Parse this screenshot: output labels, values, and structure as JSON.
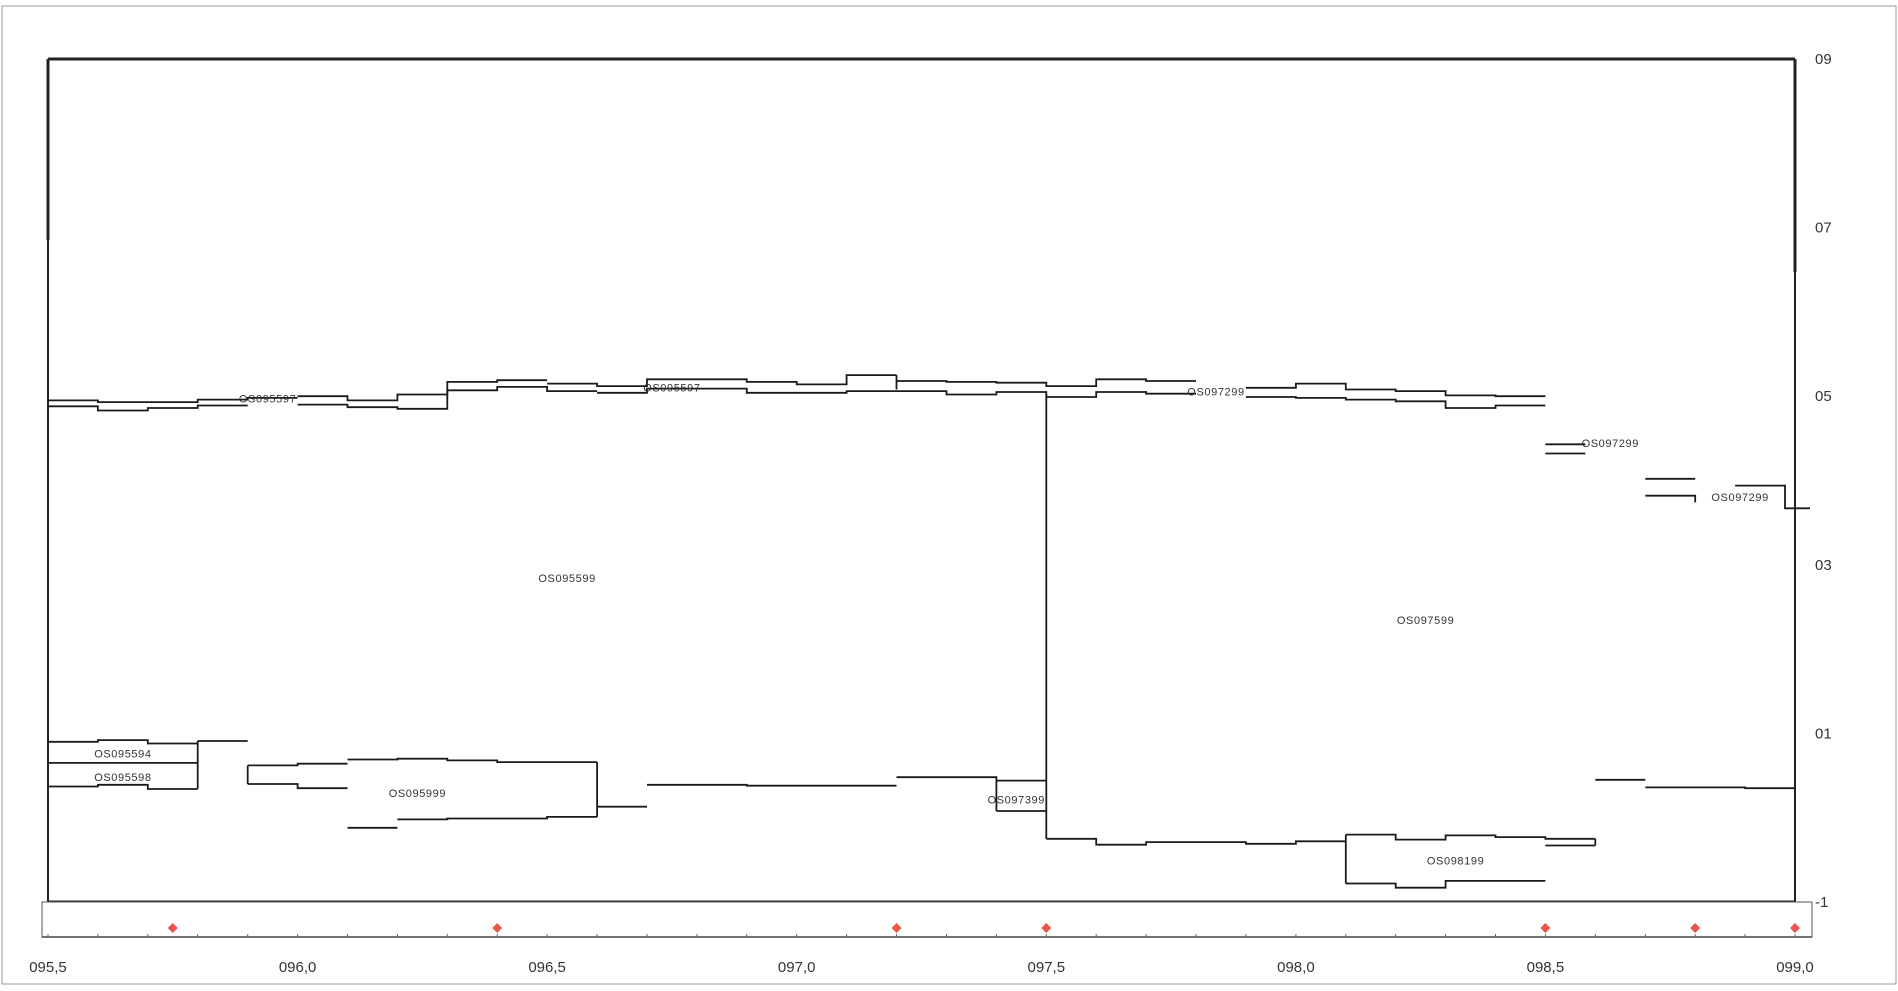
{
  "chart_data": {
    "type": "line",
    "title": "",
    "xlabel": "",
    "ylabel": "",
    "xlim": [
      95.5,
      99.0
    ],
    "ylim": [
      -1,
      9
    ],
    "x_ticks": [
      {
        "v": 95.5,
        "label": "095,5"
      },
      {
        "v": 96.0,
        "label": "096,0"
      },
      {
        "v": 96.5,
        "label": "096,5"
      },
      {
        "v": 97.0,
        "label": "097,0"
      },
      {
        "v": 97.5,
        "label": "097,5"
      },
      {
        "v": 98.0,
        "label": "098,0"
      },
      {
        "v": 98.5,
        "label": "098,5"
      },
      {
        "v": 99.0,
        "label": "099,0"
      }
    ],
    "y_ticks": [
      {
        "v": 9,
        "label": "09"
      },
      {
        "v": 7,
        "label": "07"
      },
      {
        "v": 5,
        "label": "05"
      },
      {
        "v": 3,
        "label": "03"
      },
      {
        "v": 1,
        "label": "01"
      },
      {
        "v": -1,
        "label": "-1"
      }
    ],
    "grid": false,
    "legend": "none",
    "colors": {
      "line": "#1a1a1a",
      "marker": "#e8574a",
      "text": "#333333",
      "axis": "#222222"
    },
    "segment_labels": [
      {
        "text": "OS095597",
        "x": 95.94,
        "y": 4.96
      },
      {
        "text": "OS095597",
        "x": 96.75,
        "y": 5.09
      },
      {
        "text": "OS097299",
        "x": 97.84,
        "y": 5.04
      },
      {
        "text": "OS097299",
        "x": 98.63,
        "y": 4.43
      },
      {
        "text": "OS097299",
        "x": 98.89,
        "y": 3.79
      },
      {
        "text": "OS095599",
        "x": 96.54,
        "y": 2.83
      },
      {
        "text": "OS097599",
        "x": 98.26,
        "y": 2.33
      },
      {
        "text": "OS095594",
        "x": 95.65,
        "y": 0.75
      },
      {
        "text": "OS095598",
        "x": 95.65,
        "y": 0.47
      },
      {
        "text": "OS095999",
        "x": 96.24,
        "y": 0.28
      },
      {
        "text": "OS097399",
        "x": 97.44,
        "y": 0.2
      },
      {
        "text": "OS098199",
        "x": 98.32,
        "y": -0.52
      }
    ],
    "markers": [
      95.75,
      96.4,
      97.2,
      97.5,
      98.5,
      98.8,
      99.0
    ],
    "upper_band": [
      {
        "x": [
          95.5,
          95.6,
          95.6,
          95.8,
          95.8,
          95.9,
          95.9,
          96.0
        ],
        "y": [
          4.95,
          4.95,
          4.93,
          4.93,
          4.96,
          4.96,
          4.98,
          4.98
        ]
      },
      {
        "x": [
          96.0,
          96.1,
          96.1,
          96.2,
          96.2,
          96.3,
          96.3,
          96.4,
          96.4,
          96.5
        ],
        "y": [
          5.0,
          5.0,
          4.95,
          4.95,
          5.02,
          5.02,
          5.17,
          5.17,
          5.19,
          5.19
        ]
      },
      {
        "x": [
          96.5,
          96.6,
          96.6,
          96.7,
          96.7,
          96.9,
          96.9,
          97.0,
          97.0,
          97.1,
          97.1,
          97.2
        ],
        "y": [
          5.15,
          5.15,
          5.12,
          5.12,
          5.2,
          5.2,
          5.17,
          5.17,
          5.14,
          5.14,
          5.25,
          5.25
        ]
      },
      {
        "x": [
          97.2,
          97.3,
          97.3,
          97.4,
          97.4,
          97.5,
          97.5,
          97.6,
          97.6,
          97.7,
          97.7,
          97.8
        ],
        "y": [
          5.18,
          5.18,
          5.17,
          5.17,
          5.16,
          5.16,
          5.12,
          5.12,
          5.2,
          5.2,
          5.18,
          5.18
        ]
      },
      {
        "x": [
          97.9,
          98.0,
          98.0,
          98.1,
          98.1,
          98.2,
          98.2,
          98.3,
          98.3,
          98.4,
          98.4,
          98.5
        ],
        "y": [
          5.1,
          5.1,
          5.15,
          5.15,
          5.08,
          5.08,
          5.06,
          5.06,
          5.01,
          5.01,
          5.0,
          5.0
        ]
      },
      {
        "x": [
          95.5,
          95.6,
          95.6,
          95.7,
          95.7,
          95.8,
          95.8,
          95.9
        ],
        "y": [
          4.88,
          4.88,
          4.83,
          4.83,
          4.86,
          4.86,
          4.89,
          4.89
        ]
      },
      {
        "x": [
          96.0,
          96.1,
          96.1,
          96.2,
          96.2,
          96.3,
          96.3,
          96.4,
          96.4,
          96.5,
          96.5,
          96.6
        ],
        "y": [
          4.9,
          4.9,
          4.87,
          4.87,
          4.85,
          4.85,
          5.07,
          5.07,
          5.11,
          5.11,
          5.06,
          5.06
        ]
      },
      {
        "x": [
          96.6,
          96.7,
          96.7,
          96.9,
          96.9,
          97.1,
          97.1,
          97.3,
          97.3,
          97.4,
          97.4,
          97.5,
          97.5,
          97.6,
          97.6,
          97.7,
          97.7,
          97.8
        ],
        "y": [
          5.04,
          5.04,
          5.09,
          5.09,
          5.04,
          5.04,
          5.06,
          5.06,
          5.02,
          5.02,
          5.05,
          5.05,
          4.99,
          4.99,
          5.05,
          5.05,
          5.03,
          5.03
        ]
      },
      {
        "x": [
          97.9,
          98.0,
          98.0,
          98.1,
          98.1,
          98.2,
          98.2,
          98.3,
          98.3,
          98.4,
          98.4,
          98.5
        ],
        "y": [
          4.99,
          4.99,
          4.98,
          4.98,
          4.96,
          4.96,
          4.94,
          4.94,
          4.86,
          4.86,
          4.89,
          4.89
        ]
      },
      {
        "x": [
          98.5,
          98.58
        ],
        "y": [
          4.43,
          4.43
        ]
      },
      {
        "x": [
          98.5,
          98.58
        ],
        "y": [
          4.32,
          4.32
        ]
      },
      {
        "x": [
          98.7,
          98.8
        ],
        "y": [
          4.02,
          4.02
        ]
      },
      {
        "x": [
          98.7,
          98.8,
          98.8
        ],
        "y": [
          3.82,
          3.82,
          3.74
        ]
      },
      {
        "x": [
          98.88,
          98.98,
          98.98,
          99.03
        ],
        "y": [
          3.94,
          3.94,
          3.67,
          3.67
        ]
      }
    ],
    "lower_band": [
      {
        "x": [
          95.5,
          95.6,
          95.6,
          95.7,
          95.7,
          95.8
        ],
        "y": [
          0.9,
          0.9,
          0.92,
          0.92,
          0.88,
          0.88
        ]
      },
      {
        "x": [
          95.5,
          95.8
        ],
        "y": [
          0.65,
          0.65
        ]
      },
      {
        "x": [
          95.5,
          95.6,
          95.6,
          95.7,
          95.7,
          95.8
        ],
        "y": [
          0.37,
          0.37,
          0.39,
          0.39,
          0.34,
          0.34
        ]
      },
      {
        "x": [
          95.8,
          95.9
        ],
        "y": [
          0.91,
          0.91
        ]
      },
      {
        "x": [
          95.9,
          96.0,
          96.0,
          96.1
        ],
        "y": [
          0.62,
          0.62,
          0.64,
          0.64
        ]
      },
      {
        "x": [
          95.9,
          96.0,
          96.0,
          96.1
        ],
        "y": [
          0.4,
          0.4,
          0.35,
          0.35
        ]
      },
      {
        "x": [
          96.1,
          96.2,
          96.2,
          96.3,
          96.3,
          96.4,
          96.4,
          96.6
        ],
        "y": [
          0.69,
          0.69,
          0.7,
          0.7,
          0.68,
          0.68,
          0.66,
          0.66
        ]
      },
      {
        "x": [
          96.1,
          96.2
        ],
        "y": [
          -0.12,
          -0.12
        ]
      },
      {
        "x": [
          96.2,
          96.3,
          96.3,
          96.5,
          96.5,
          96.6
        ],
        "y": [
          -0.02,
          -0.02,
          -0.01,
          -0.01,
          0.01,
          0.01
        ]
      },
      {
        "x": [
          96.6,
          96.7
        ],
        "y": [
          0.13,
          0.13
        ]
      },
      {
        "x": [
          96.7,
          96.9,
          96.9,
          97.2
        ],
        "y": [
          0.39,
          0.39,
          0.38,
          0.38
        ]
      },
      {
        "x": [
          97.2,
          97.4,
          97.4,
          97.5
        ],
        "y": [
          0.48,
          0.48,
          0.44,
          0.44
        ]
      },
      {
        "x": [
          97.4,
          97.5
        ],
        "y": [
          0.08,
          0.08
        ]
      },
      {
        "x": [
          97.5,
          97.6,
          97.6,
          97.7,
          97.7,
          97.9,
          97.9,
          98.0,
          98.0,
          98.1
        ],
        "y": [
          -0.25,
          -0.25,
          -0.32,
          -0.32,
          -0.29,
          -0.29,
          -0.31,
          -0.31,
          -0.28,
          -0.28
        ]
      },
      {
        "x": [
          98.1,
          98.2,
          98.2,
          98.3,
          98.3,
          98.4,
          98.4,
          98.5,
          98.5,
          98.6
        ],
        "y": [
          -0.2,
          -0.2,
          -0.26,
          -0.26,
          -0.21,
          -0.21,
          -0.23,
          -0.23,
          -0.25,
          -0.25
        ]
      },
      {
        "x": [
          98.5,
          98.6
        ],
        "y": [
          -0.33,
          -0.33
        ]
      },
      {
        "x": [
          98.1,
          98.2,
          98.2,
          98.3,
          98.3,
          98.5
        ],
        "y": [
          -0.78,
          -0.78,
          -0.83,
          -0.83,
          -0.75,
          -0.75
        ]
      },
      {
        "x": [
          98.6,
          98.7
        ],
        "y": [
          0.45,
          0.45
        ]
      },
      {
        "x": [
          98.7,
          98.9,
          98.9,
          99.0
        ],
        "y": [
          0.36,
          0.36,
          0.35,
          0.35
        ]
      }
    ],
    "connectors": [
      {
        "x": [
          95.8,
          95.8
        ],
        "y": [
          0.34,
          0.91
        ]
      },
      {
        "x": [
          95.9,
          95.9
        ],
        "y": [
          0.4,
          0.62
        ]
      },
      {
        "x": [
          96.6,
          96.6
        ],
        "y": [
          0.01,
          0.66
        ]
      },
      {
        "x": [
          97.2,
          97.2
        ],
        "y": [
          5.08,
          5.25
        ]
      },
      {
        "x": [
          97.4,
          97.4
        ],
        "y": [
          0.08,
          0.44
        ]
      },
      {
        "x": [
          97.5,
          97.5
        ],
        "y": [
          -0.25,
          5.03
        ]
      },
      {
        "x": [
          98.1,
          98.1
        ],
        "y": [
          -0.78,
          -0.2
        ]
      },
      {
        "x": [
          98.6,
          98.6
        ],
        "y": [
          -0.33,
          -0.25
        ]
      }
    ]
  }
}
